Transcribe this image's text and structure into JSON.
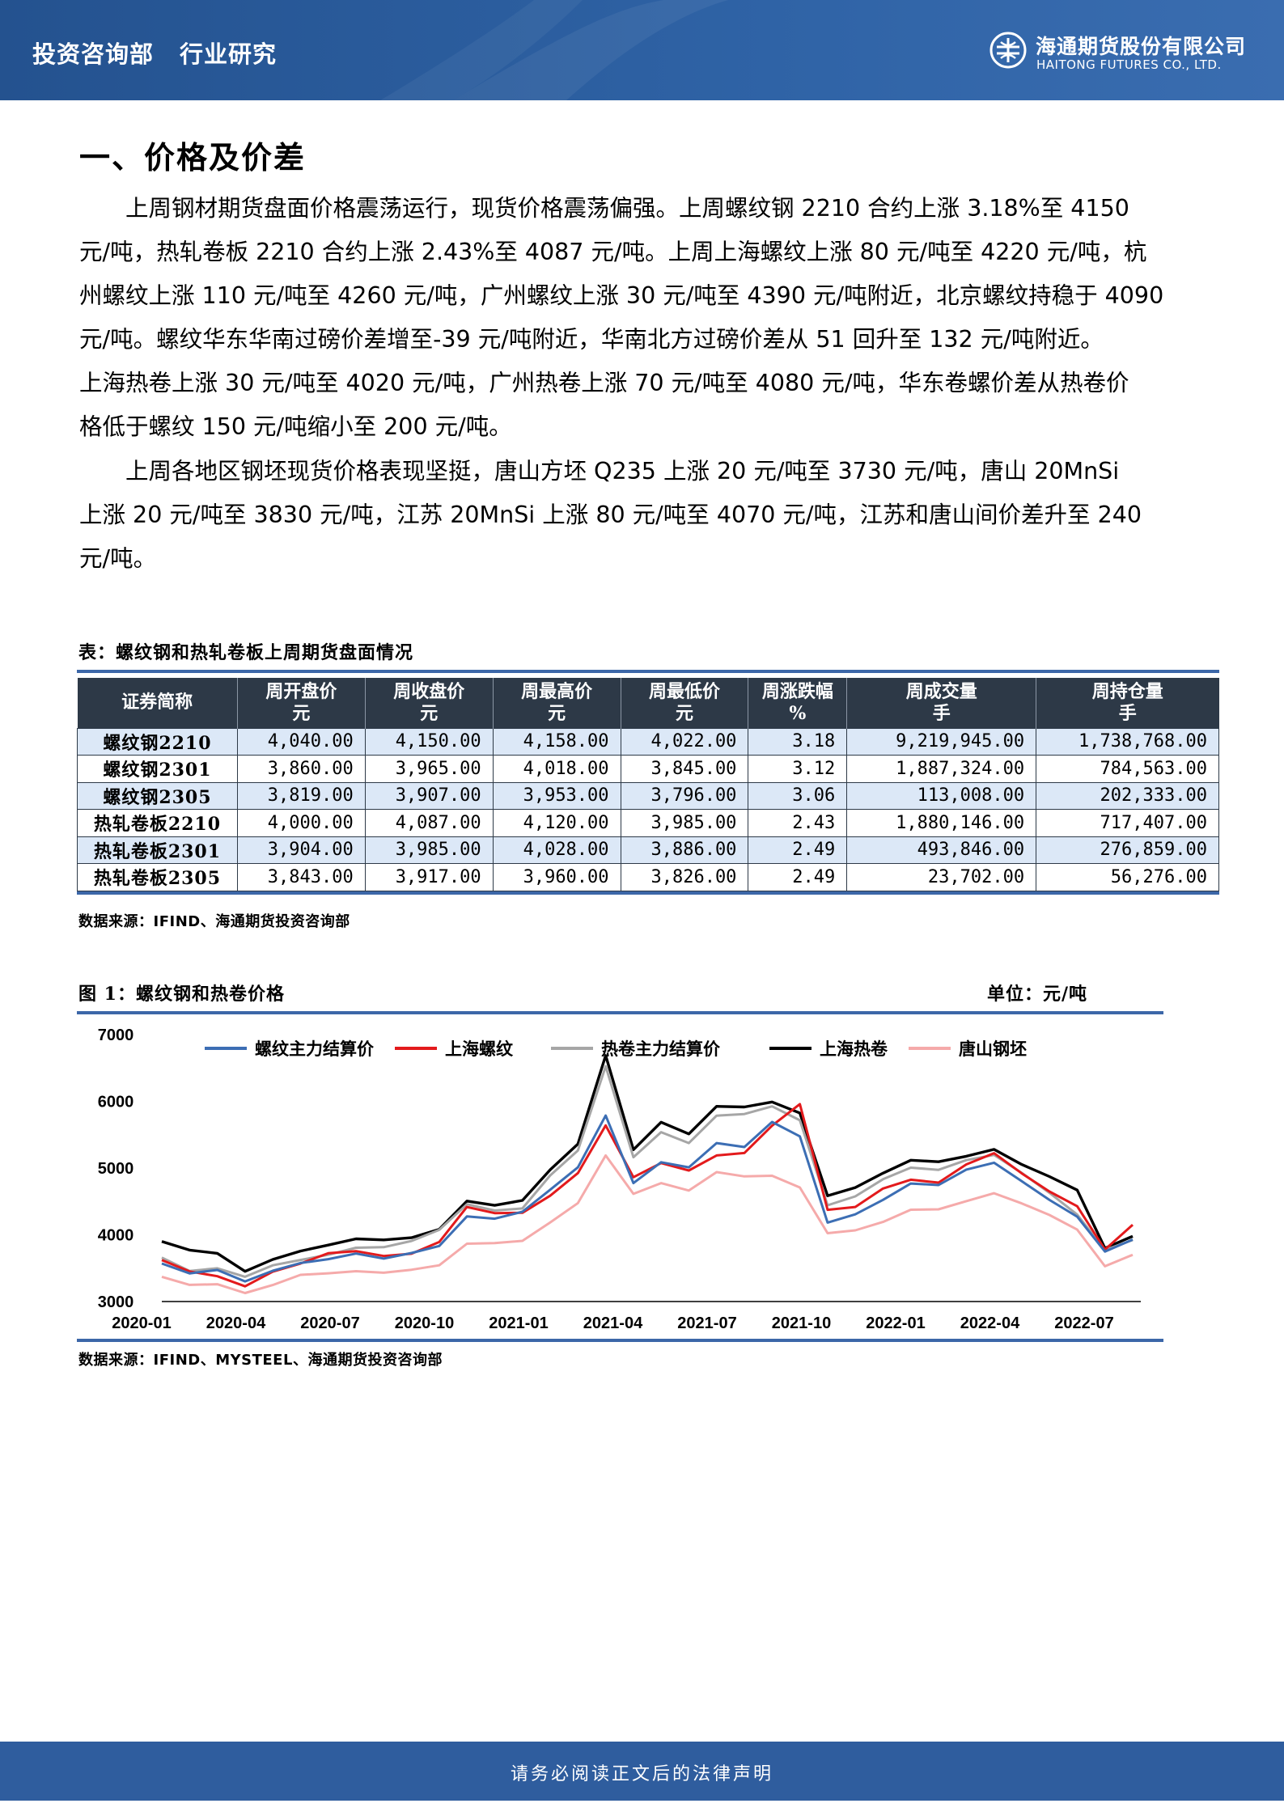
{
  "header": {
    "dept": "投资咨询部",
    "section": "行业研究",
    "company_cn": "海通期货股份有限公司",
    "company_en": "HAITONG FUTURES CO., LTD."
  },
  "heading": "一、价格及价差",
  "paragraph1": [
    "上周钢材期货盘面价格震荡运行，现货价格震荡偏强。上周螺纹钢 2210 合约上涨 3.18%至 4150",
    "元/吨，热轧卷板 2210 合约上涨 2.43%至 4087 元/吨。上周上海螺纹上涨 80 元/吨至 4220 元/吨，杭",
    "州螺纹上涨 110 元/吨至 4260 元/吨，广州螺纹上涨 30 元/吨至 4390 元/吨附近，北京螺纹持稳于 4090",
    "元/吨。螺纹华东华南过磅价差增至-39 元/吨附近，华南北方过磅价差从 51 回升至 132 元/吨附近。",
    "上海热卷上涨 30 元/吨至 4020 元/吨，广州热卷上涨 70 元/吨至 4080 元/吨，华东卷螺价差从热卷价",
    "格低于螺纹 150 元/吨缩小至 200 元/吨。"
  ],
  "paragraph2": [
    "上周各地区钢坯现货价格表现坚挺，唐山方坯 Q235 上涨 20 元/吨至 3730 元/吨，唐山 20MnSi",
    "上涨 20 元/吨至 3830 元/吨，江苏 20MnSi 上涨 80 元/吨至 4070 元/吨，江苏和唐山间价差升至 240",
    "元/吨。"
  ],
  "table": {
    "caption": "表：螺纹钢和热轧卷板上周期货盘面情况",
    "headers": [
      {
        "name": "证券简称",
        "unit": ""
      },
      {
        "name": "周开盘价",
        "unit": "元"
      },
      {
        "name": "周收盘价",
        "unit": "元"
      },
      {
        "name": "周最高价",
        "unit": "元"
      },
      {
        "name": "周最低价",
        "unit": "元"
      },
      {
        "name": "周涨跌幅",
        "unit": "%"
      },
      {
        "name": "周成交量",
        "unit": "手"
      },
      {
        "name": "周持仓量",
        "unit": "手"
      }
    ],
    "rows": [
      [
        "螺纹钢2210",
        "4,040.00",
        "4,150.00",
        "4,158.00",
        "4,022.00",
        "3.18",
        "9,219,945.00",
        "1,738,768.00"
      ],
      [
        "螺纹钢2301",
        "3,860.00",
        "3,965.00",
        "4,018.00",
        "3,845.00",
        "3.12",
        "1,887,324.00",
        "784,563.00"
      ],
      [
        "螺纹钢2305",
        "3,819.00",
        "3,907.00",
        "3,953.00",
        "3,796.00",
        "3.06",
        "113,008.00",
        "202,333.00"
      ],
      [
        "热轧卷板2210",
        "4,000.00",
        "4,087.00",
        "4,120.00",
        "3,985.00",
        "2.43",
        "1,880,146.00",
        "717,407.00"
      ],
      [
        "热轧卷板2301",
        "3,904.00",
        "3,985.00",
        "4,028.00",
        "3,886.00",
        "2.49",
        "493,846.00",
        "276,859.00"
      ],
      [
        "热轧卷板2305",
        "3,843.00",
        "3,917.00",
        "3,960.00",
        "3,826.00",
        "2.49",
        "23,702.00",
        "56,276.00"
      ]
    ],
    "source": "数据来源：IFIND、海通期货投资咨询部"
  },
  "figure": {
    "caption": "图 1：螺纹钢和热卷价格",
    "unit": "单位：元/吨",
    "source": "数据来源：IFIND、MYSTEEL、海通期货投资咨询部"
  },
  "chart_data": {
    "type": "line",
    "title": "",
    "xlabel": "",
    "ylabel": "",
    "ylim": [
      3000,
      7000
    ],
    "yticks": [
      "7000",
      "6000",
      "5000",
      "4000",
      "3000"
    ],
    "xticks": [
      "2020-01",
      "2020-04",
      "2020-07",
      "2020-10",
      "2021-01",
      "2021-04",
      "2021-07",
      "2021-10",
      "2022-01",
      "2022-04",
      "2022-07"
    ],
    "x": [
      "2020-01",
      "2020-02",
      "2020-03",
      "2020-04",
      "2020-05",
      "2020-06",
      "2020-07",
      "2020-08",
      "2020-09",
      "2020-10",
      "2020-11",
      "2020-12",
      "2021-01",
      "2021-02",
      "2021-03",
      "2021-04",
      "2021-05a",
      "2021-05b",
      "2021-05c",
      "2021-06",
      "2021-07",
      "2021-08",
      "2021-09",
      "2021-10a",
      "2021-10b",
      "2021-11",
      "2021-12",
      "2022-01",
      "2022-02",
      "2022-03",
      "2022-04",
      "2022-05",
      "2022-06a",
      "2022-06b",
      "2022-07",
      "2022-08"
    ],
    "series": [
      {
        "name": "螺纹主力结算价",
        "color": "#3c6eb4",
        "values": [
          3570,
          3400,
          3450,
          3300,
          3480,
          3600,
          3640,
          3700,
          3620,
          3720,
          3850,
          4300,
          4250,
          4330,
          4650,
          5000,
          5800,
          4800,
          5100,
          5000,
          5350,
          5300,
          5700,
          5500,
          4200,
          4300,
          4500,
          4750,
          4750,
          5000,
          5100,
          4800,
          4500,
          4250,
          3750,
          3950
        ]
      },
      {
        "name": "上海螺纹",
        "color": "#e31a1c",
        "values": [
          3600,
          3450,
          3400,
          3250,
          3450,
          3550,
          3700,
          3750,
          3700,
          3740,
          3900,
          4400,
          4300,
          4320,
          4600,
          4950,
          5650,
          4850,
          5050,
          4950,
          5200,
          5250,
          5650,
          5950,
          4350,
          4400,
          4700,
          4850,
          4800,
          5050,
          5200,
          4900,
          4650,
          4450,
          3800,
          4150
        ]
      },
      {
        "name": "热卷主力结算价",
        "color": "#a6a6a6",
        "values": [
          3680,
          3480,
          3500,
          3350,
          3520,
          3620,
          3720,
          3830,
          3820,
          3890,
          4050,
          4450,
          4380,
          4420,
          4900,
          5250,
          6500,
          5150,
          5550,
          5400,
          5800,
          5800,
          5900,
          5700,
          4450,
          4600,
          4850,
          5000,
          4950,
          5100,
          5200,
          4950,
          4650,
          4300,
          3750,
          3900
        ]
      },
      {
        "name": "上海热卷",
        "color": "#000000",
        "values": [
          3900,
          3750,
          3700,
          3450,
          3650,
          3780,
          3850,
          3920,
          3900,
          3950,
          4100,
          4530,
          4450,
          4500,
          4950,
          5350,
          6700,
          5300,
          5700,
          5500,
          5900,
          5900,
          6000,
          5850,
          4600,
          4700,
          4900,
          5100,
          5100,
          5200,
          5300,
          5050,
          4850,
          4650,
          3800,
          4000
        ]
      },
      {
        "name": "唐山钢坯",
        "color": "#f5aaaa",
        "values": [
          3350,
          3250,
          3280,
          3150,
          3250,
          3380,
          3400,
          3450,
          3450,
          3500,
          3550,
          3850,
          3850,
          3900,
          4200,
          4500,
          5200,
          4600,
          4750,
          4650,
          4950,
          4900,
          4900,
          4700,
          4000,
          4050,
          4200,
          4400,
          4400,
          4500,
          4600,
          4450,
          4300,
          4100,
          3550,
          3700
        ]
      }
    ],
    "legend": "top"
  },
  "footer": "请务必阅读正文后的法律声明"
}
